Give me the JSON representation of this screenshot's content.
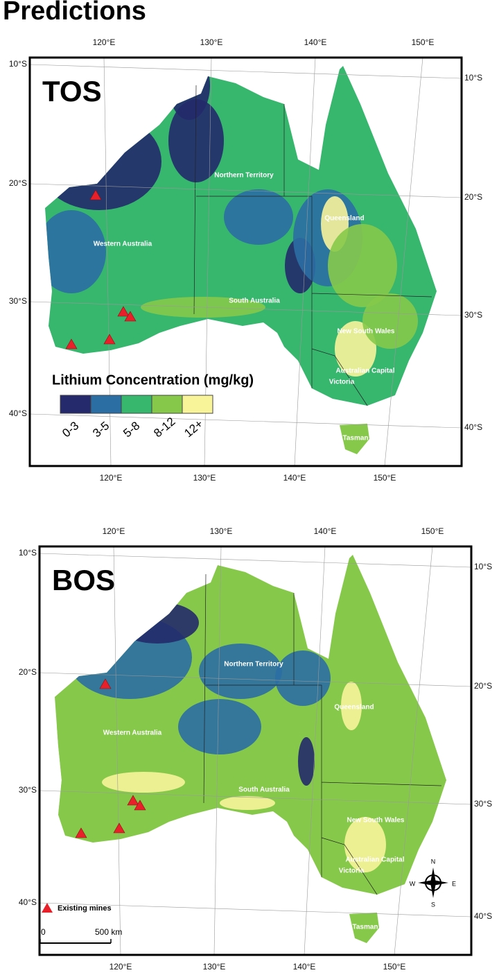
{
  "title": "Predictions",
  "graticule": {
    "lat": [
      "10°S",
      "20°S",
      "30°S",
      "40°S"
    ],
    "lon": [
      "120°E",
      "130°E",
      "140°E",
      "150°E"
    ]
  },
  "regions": [
    "Northern Territory",
    "Queensland",
    "Western Australia",
    "South Australia",
    "New South Wales",
    "Australian Capital",
    "Victoria",
    "Tasman"
  ],
  "panels": [
    {
      "label": "TOS"
    },
    {
      "label": "BOS"
    }
  ],
  "legend": {
    "title": "Lithium Concentration (mg/kg)",
    "classes": [
      {
        "label": "0-3",
        "color": "#242a6b"
      },
      {
        "label": "3-5",
        "color": "#2b6ea3"
      },
      {
        "label": "5-8",
        "color": "#37b66e"
      },
      {
        "label": "8-12",
        "color": "#86c94a"
      },
      {
        "label": "12+",
        "color": "#f8f49a"
      }
    ]
  },
  "mines_legend": "Existing mines",
  "scale_bar": [
    "0",
    "500 km"
  ],
  "compass": [
    "N",
    "E",
    "S",
    "W"
  ]
}
